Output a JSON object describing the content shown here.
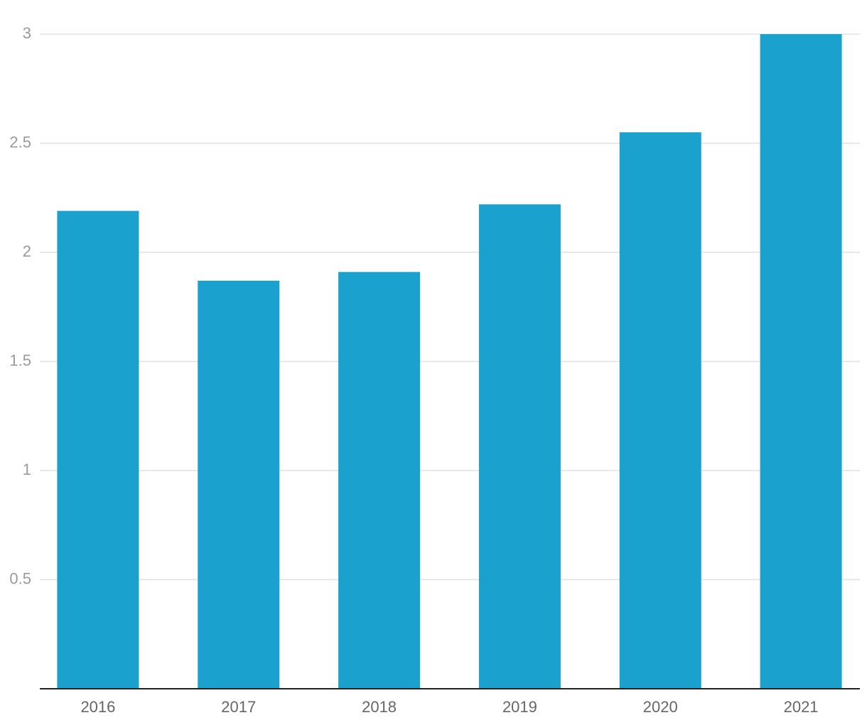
{
  "chart_data": {
    "type": "bar",
    "categories": [
      "2016",
      "2017",
      "2018",
      "2019",
      "2020",
      "2021"
    ],
    "values": [
      2.19,
      1.87,
      1.91,
      2.22,
      2.55,
      3.0
    ],
    "color": "#1aa1ce",
    "ylim": [
      0,
      3
    ],
    "yticks": [
      0.5,
      1,
      1.5,
      2,
      2.5,
      3
    ],
    "grid": true
  }
}
